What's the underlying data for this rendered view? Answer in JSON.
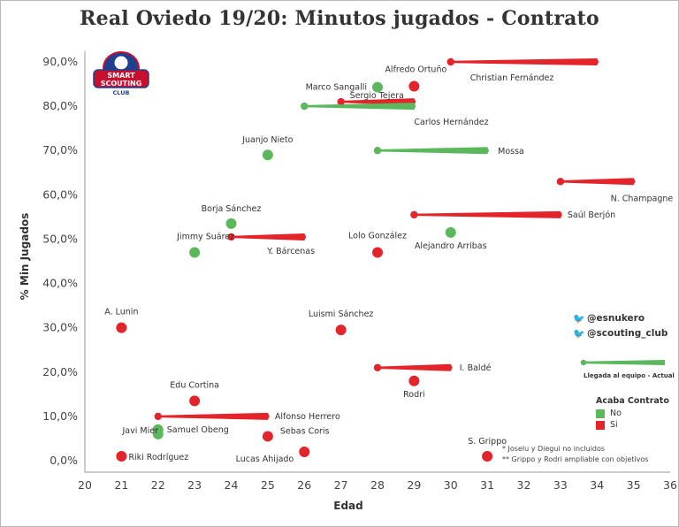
{
  "chart_data": {
    "type": "scatter",
    "title": "Real Oviedo 19/20: Minutos jugados - Contrato",
    "xlabel": "Edad",
    "ylabel": "% Min Jugados",
    "xlim": [
      20,
      36
    ],
    "ylim": [
      0,
      90
    ],
    "x_ticks": [
      20,
      21,
      22,
      23,
      24,
      25,
      26,
      27,
      28,
      29,
      30,
      31,
      32,
      33,
      34,
      35,
      36
    ],
    "y_ticks": [
      0,
      10,
      20,
      30,
      40,
      50,
      60,
      70,
      80,
      90
    ],
    "y_tick_labels": [
      "0,0%",
      "10,0%",
      "20,0%",
      "30,0%",
      "40,0%",
      "50,0%",
      "60,0%",
      "70,0%",
      "80,0%",
      "90,0%"
    ],
    "grid": false,
    "colors": {
      "No": "#5cb85c",
      "Si": "#e3242b"
    },
    "legend": {
      "title": "Acaba Contrato",
      "items": [
        {
          "label": "No",
          "key": "No"
        },
        {
          "label": "Si",
          "key": "Si"
        }
      ],
      "size_label": "Llegada al equipo - Actual",
      "position": "bottom-right"
    },
    "notes": [
      "* Joselu y Diegui no incluidos",
      "** Grippo y Rodri ampliable con objetivos"
    ],
    "social": [
      "@esnukero",
      "@scouting_club"
    ],
    "players": [
      {
        "name": "Christian Fernández",
        "age_arrival": 30.0,
        "age_now": 34.0,
        "pct": 90.0,
        "contract_ends": "Si"
      },
      {
        "name": "Alfredo Ortuño",
        "age_arrival": 29.0,
        "age_now": 29.0,
        "pct": 84.5,
        "contract_ends": "Si"
      },
      {
        "name": "Marco Sangalli",
        "age_arrival": 28.0,
        "age_now": 28.0,
        "pct": 84.3,
        "contract_ends": "No"
      },
      {
        "name": "Sergio Tejera",
        "age_arrival": 27.0,
        "age_now": 29.0,
        "pct": 81.0,
        "contract_ends": "Si"
      },
      {
        "name": "Carlos Hernández",
        "age_arrival": 26.0,
        "age_now": 29.0,
        "pct": 80.0,
        "contract_ends": "No"
      },
      {
        "name": "Juanjo Nieto",
        "age_arrival": 25.0,
        "age_now": 25.0,
        "pct": 69.0,
        "contract_ends": "No"
      },
      {
        "name": "Mossa",
        "age_arrival": 28.0,
        "age_now": 31.0,
        "pct": 70.0,
        "contract_ends": "No"
      },
      {
        "name": "N. Champagne",
        "age_arrival": 33.0,
        "age_now": 35.0,
        "pct": 63.0,
        "contract_ends": "Si"
      },
      {
        "name": "Saúl Berjón",
        "age_arrival": 29.0,
        "age_now": 33.0,
        "pct": 55.5,
        "contract_ends": "Si"
      },
      {
        "name": "Borja Sánchez",
        "age_arrival": 24.0,
        "age_now": 24.0,
        "pct": 53.5,
        "contract_ends": "No"
      },
      {
        "name": "Jimmy Suárez",
        "age_arrival": 23.0,
        "age_now": 23.0,
        "pct": 47.0,
        "contract_ends": "No"
      },
      {
        "name": "Y. Bárcenas",
        "age_arrival": 24.0,
        "age_now": 26.0,
        "pct": 50.5,
        "contract_ends": "Si"
      },
      {
        "name": "Lolo González",
        "age_arrival": 28.0,
        "age_now": 28.0,
        "pct": 47.0,
        "contract_ends": "Si"
      },
      {
        "name": "Alejandro Arribas",
        "age_arrival": 30.0,
        "age_now": 30.0,
        "pct": 51.5,
        "contract_ends": "No"
      },
      {
        "name": "A. Lunin",
        "age_arrival": 21.0,
        "age_now": 21.0,
        "pct": 30.0,
        "contract_ends": "Si"
      },
      {
        "name": "Luismi Sánchez",
        "age_arrival": 27.0,
        "age_now": 27.0,
        "pct": 29.5,
        "contract_ends": "Si"
      },
      {
        "name": "I. Baldé",
        "age_arrival": 28.0,
        "age_now": 30.0,
        "pct": 21.0,
        "contract_ends": "Si"
      },
      {
        "name": "Rodri",
        "age_arrival": 29.0,
        "age_now": 29.0,
        "pct": 18.0,
        "contract_ends": "Si"
      },
      {
        "name": "Edu Cortina",
        "age_arrival": 23.0,
        "age_now": 23.0,
        "pct": 13.5,
        "contract_ends": "Si"
      },
      {
        "name": "Alfonso Herrero",
        "age_arrival": 22.0,
        "age_now": 25.0,
        "pct": 10.0,
        "contract_ends": "Si"
      },
      {
        "name": "Samuel Obeng",
        "age_arrival": 22.0,
        "age_now": 22.0,
        "pct": 7.0,
        "contract_ends": "No"
      },
      {
        "name": "Javi Mier",
        "age_arrival": 22.0,
        "age_now": 22.0,
        "pct": 6.0,
        "contract_ends": "No"
      },
      {
        "name": "Sebas Coris",
        "age_arrival": 25.0,
        "age_now": 25.0,
        "pct": 5.5,
        "contract_ends": "Si"
      },
      {
        "name": "Riki Rodríguez",
        "age_arrival": 21.0,
        "age_now": 21.0,
        "pct": 1.0,
        "contract_ends": "Si"
      },
      {
        "name": "Lucas Ahijado",
        "age_arrival": 26.0,
        "age_now": 26.0,
        "pct": 2.0,
        "contract_ends": "Si"
      },
      {
        "name": "S. Grippo",
        "age_arrival": 31.0,
        "age_now": 31.0,
        "pct": 1.0,
        "contract_ends": "Si"
      }
    ]
  },
  "logo": {
    "line1": "SMART",
    "line2": "SCOUTING",
    "line3": "CLUB"
  }
}
